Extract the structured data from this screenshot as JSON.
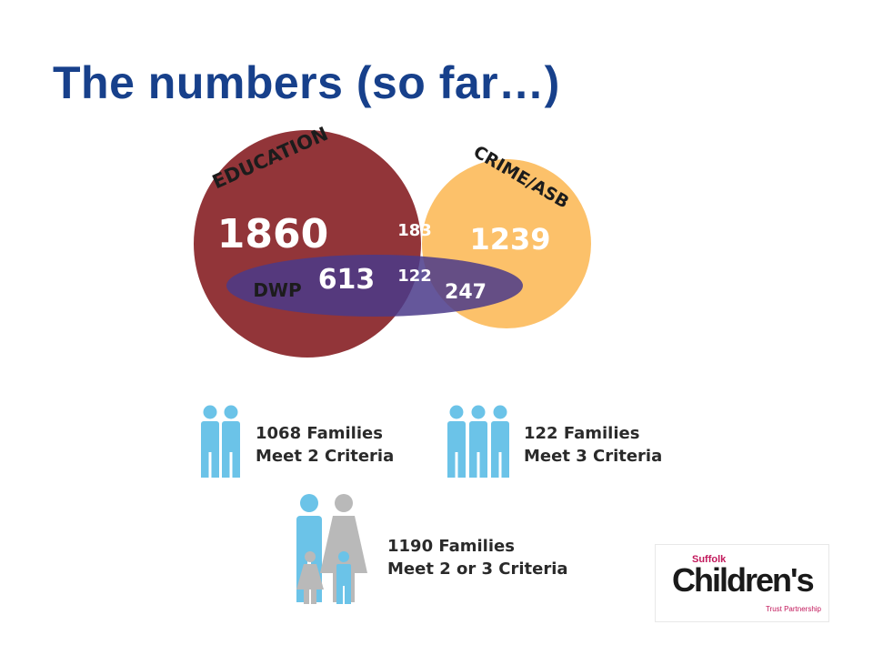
{
  "slide": {
    "title": "The numbers (so far…)"
  },
  "venn": {
    "education": {
      "label": "EDUCATION",
      "value": "1860",
      "color": "#8c2a2e"
    },
    "crime": {
      "label": "CRIME/ASB",
      "value": "1239",
      "color": "#fbb040"
    },
    "dwp": {
      "label": "DWP",
      "value": "613",
      "color": "#4a3a8a"
    },
    "overlap_education_crime": "183",
    "overlap_all": "122",
    "overlap_dwp_crime": "247"
  },
  "stats": [
    {
      "line1": "1068 Families",
      "line2": "Meet 2 Criteria",
      "icon": "two-people-icon"
    },
    {
      "line1": "122 Families",
      "line2": "Meet 3 Criteria",
      "icon": "three-people-icon"
    },
    {
      "line1": "1190 Families",
      "line2": "Meet 2 or 3 Criteria",
      "icon": "family-icon"
    }
  ],
  "logo": {
    "small": "Suffolk",
    "main": "Children's",
    "sub": "Trust Partnership"
  },
  "colors": {
    "title": "#17408b",
    "icon_blue": "#6bc3e8",
    "icon_grey": "#b9b9b9"
  }
}
